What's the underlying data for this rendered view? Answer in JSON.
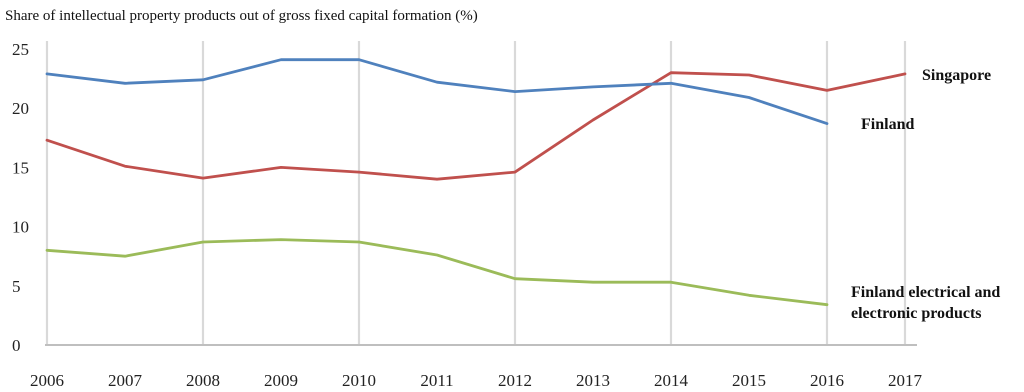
{
  "chart_data": {
    "type": "line",
    "title": "Share of intellectual property products out of gross fixed capital formation (%)",
    "xlabel": "",
    "ylabel": "",
    "categories": [
      "2006",
      "2007",
      "2008",
      "2009",
      "2010",
      "2011",
      "2012",
      "2013",
      "2014",
      "2015",
      "2016",
      "2017"
    ],
    "ylim": [
      0,
      25
    ],
    "yticks": [
      "0",
      "5",
      "10",
      "15",
      "20",
      "25"
    ],
    "grid": "vertical",
    "series": [
      {
        "name": "Singapore",
        "color": "#c0504d",
        "values": [
          17.3,
          15.1,
          14.1,
          15.0,
          14.6,
          14.0,
          14.6,
          19.0,
          23.0,
          22.8,
          21.5,
          22.9
        ]
      },
      {
        "name": "Finland",
        "color": "#4f81bd",
        "values": [
          22.9,
          22.1,
          22.4,
          24.1,
          24.1,
          22.2,
          21.4,
          21.8,
          22.1,
          20.9,
          18.7,
          null
        ]
      },
      {
        "name": "Finland electrical and electronic products",
        "label_lines": [
          "Finland electrical and",
          "electronic products"
        ],
        "color": "#9bbb59",
        "values": [
          8.0,
          7.5,
          8.7,
          8.9,
          8.7,
          7.6,
          5.6,
          5.3,
          5.3,
          4.2,
          3.4,
          null
        ]
      }
    ]
  }
}
